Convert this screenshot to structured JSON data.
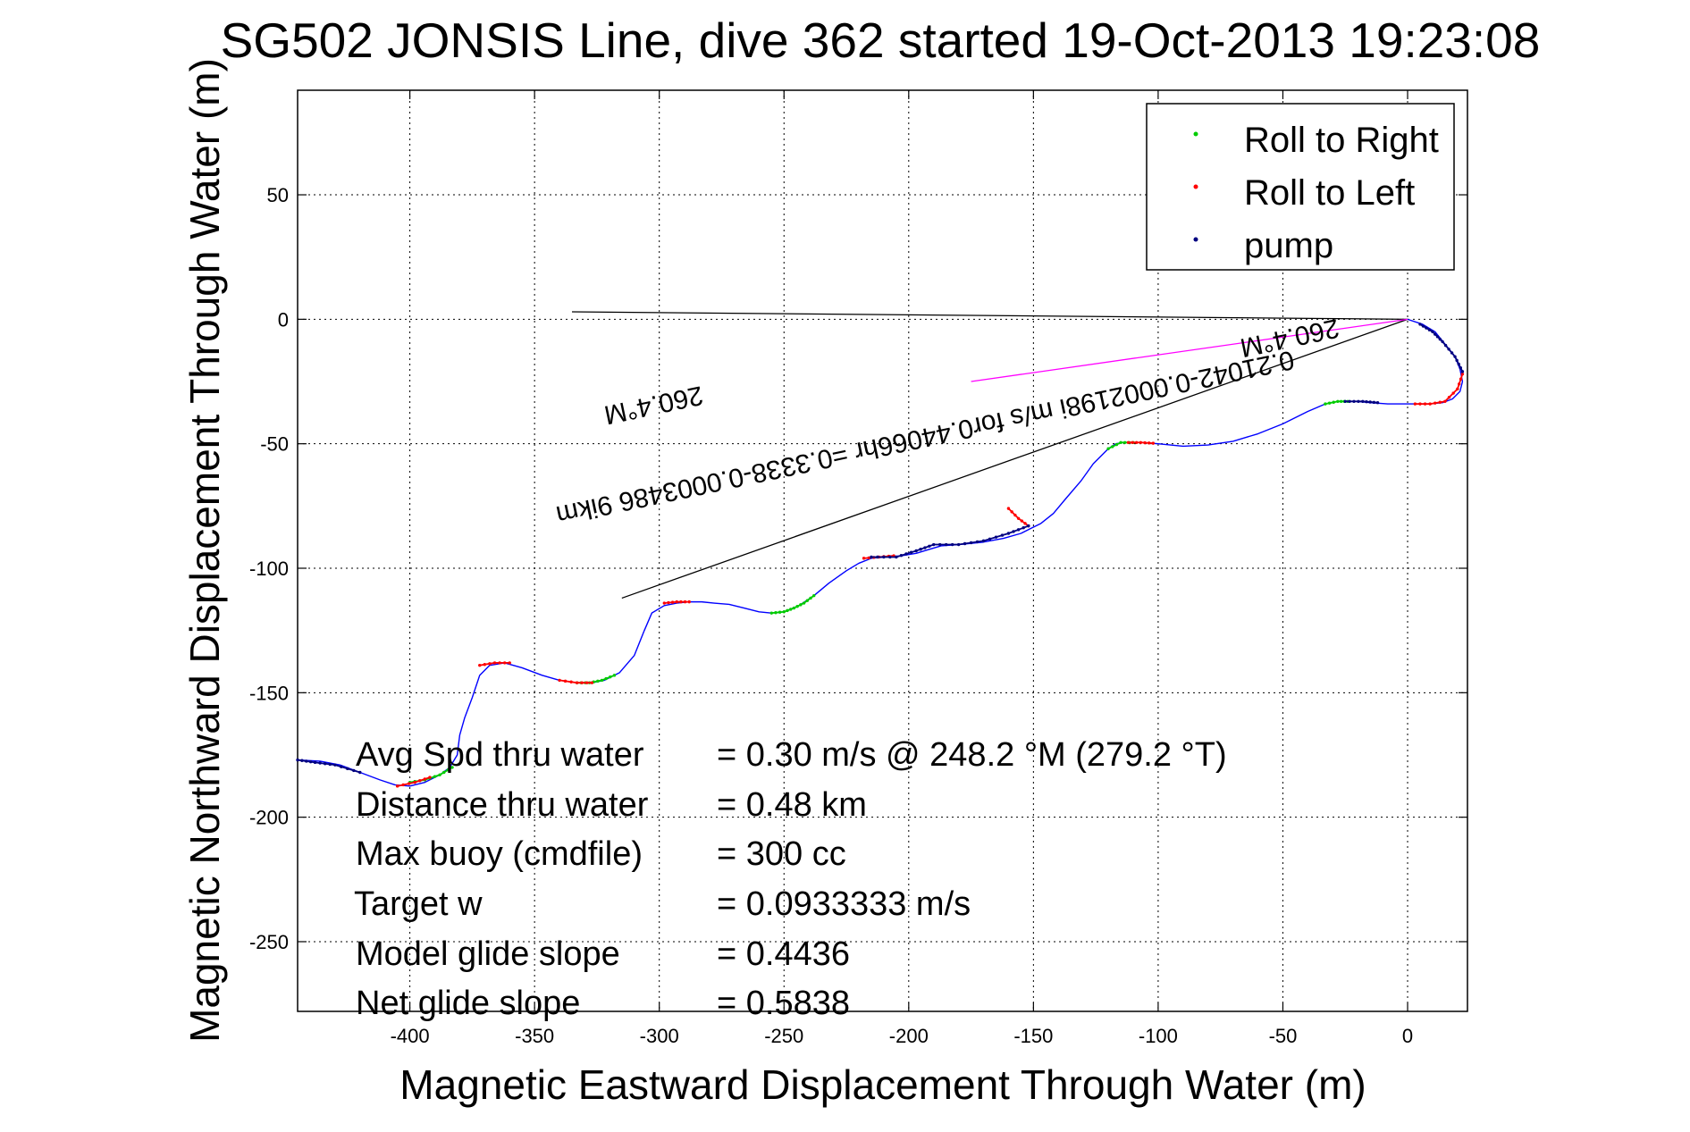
{
  "chart_data": {
    "type": "line",
    "title": "SG502 JONSIS Line, dive 362 started 19-Oct-2013 19:23:08",
    "xlabel": "Magnetic Eastward Displacement Through Water (m)",
    "ylabel": "Magnetic Northward Displacement Through Water (m)",
    "xlim": [
      -445,
      24
    ],
    "ylim": [
      -278,
      92
    ],
    "xticks": [
      -400,
      -350,
      -300,
      -250,
      -200,
      -150,
      -100,
      -50,
      0
    ],
    "yticks": [
      50,
      0,
      -50,
      -100,
      -150,
      -200,
      -250
    ],
    "grid": true,
    "legend_position": "top-right",
    "legend": [
      {
        "label": "Roll to Right",
        "color": "#00cc00"
      },
      {
        "label": "Roll to Left",
        "color": "#ff0000"
      },
      {
        "label": "pump",
        "color": "#000080"
      }
    ],
    "track": {
      "name": "",
      "color": "#0000ff",
      "x": [
        0,
        6,
        11,
        15,
        19,
        21,
        22,
        21,
        18,
        14,
        9,
        4,
        0,
        -8,
        -15,
        -20,
        -24,
        -28,
        -33,
        -40,
        -50,
        -60,
        -70,
        -80,
        -90,
        -100,
        -106,
        -110,
        -114,
        -117,
        -120,
        -126,
        -131,
        -137,
        -142,
        -147,
        -151,
        -155,
        -162,
        -170,
        -180,
        -187,
        -192,
        -197,
        -203,
        -209,
        -215,
        -220,
        -225,
        -232,
        -238,
        -244,
        -250,
        -255,
        -260,
        -266,
        -272,
        -278,
        -283,
        -288,
        -293,
        -298,
        -303,
        -306,
        -310,
        -316,
        -322,
        -327,
        -333,
        -340,
        -347,
        -355,
        -362,
        -368,
        -372,
        -375,
        -378,
        -380,
        -381,
        -384,
        -388,
        -394,
        -400,
        -406,
        -412,
        -420,
        -428,
        -436,
        -445
      ],
      "y": [
        0,
        -2,
        -5,
        -10,
        -15,
        -20,
        -25,
        -29,
        -32,
        -33.5,
        -34,
        -34,
        -34,
        -34,
        -33.5,
        -33,
        -33,
        -33,
        -34,
        -37,
        -42,
        -46,
        -49,
        -50.5,
        -51,
        -50,
        -49.5,
        -49.5,
        -49.5,
        -50,
        -52,
        -58,
        -65,
        -72,
        -78,
        -82,
        -84,
        -86,
        -88,
        -89.5,
        -90.5,
        -91,
        -92.5,
        -94,
        -95,
        -95.5,
        -96,
        -98,
        -101,
        -106,
        -111,
        -115,
        -117.5,
        -118,
        -117.5,
        -116,
        -114.5,
        -114,
        -113.5,
        -113.5,
        -114,
        -115,
        -118,
        -125,
        -135,
        -142,
        -145,
        -146,
        -146,
        -145,
        -143,
        -140,
        -138,
        -139,
        -143,
        -152,
        -160,
        -167,
        -175,
        -180,
        -183,
        -186,
        -187.5,
        -187,
        -185,
        -182,
        -179,
        -177.5,
        -177
      ]
    },
    "pump_segments": [
      {
        "x": [
          -215,
          -205,
          -197,
          -190,
          -180,
          -170,
          -160,
          -152
        ],
        "y": [
          -95.5,
          -95.5,
          -93,
          -90.5,
          -90.5,
          -89,
          -86,
          -83
        ]
      },
      {
        "x": [
          -25,
          -18,
          -12
        ],
        "y": [
          -33,
          -33,
          -33.5
        ]
      },
      {
        "x": [
          5,
          10,
          14,
          19,
          22
        ],
        "y": [
          -2,
          -5,
          -9,
          -15,
          -21
        ]
      },
      {
        "x": [
          -420,
          -430,
          -438,
          -445
        ],
        "y": [
          -182,
          -179,
          -178,
          -177
        ]
      }
    ],
    "left_roll_segments": [
      {
        "x": [
          22,
          20,
          15,
          9,
          3
        ],
        "y": [
          -22,
          -28,
          -33,
          -34,
          -34
        ]
      },
      {
        "x": [
          -152,
          -156,
          -160
        ],
        "y": [
          -83,
          -80,
          -76
        ]
      },
      {
        "x": [
          -112,
          -107,
          -102
        ],
        "y": [
          -49.5,
          -49.5,
          -49.8
        ]
      },
      {
        "x": [
          -218,
          -212,
          -206
        ],
        "y": [
          -96,
          -95.5,
          -95
        ]
      },
      {
        "x": [
          -288,
          -293,
          -298
        ],
        "y": [
          -113.5,
          -113.5,
          -114
        ]
      },
      {
        "x": [
          -340,
          -333,
          -327
        ],
        "y": [
          -145,
          -146,
          -146
        ]
      },
      {
        "x": [
          -405,
          -398,
          -392
        ],
        "y": [
          -187.5,
          -186,
          -184
        ]
      },
      {
        "x": [
          -360,
          -366,
          -372
        ],
        "y": [
          -138,
          -138,
          -139
        ]
      }
    ],
    "right_roll_segments": [
      {
        "x": [
          -33,
          -28,
          -24
        ],
        "y": [
          -34,
          -33,
          -33
        ]
      },
      {
        "x": [
          -120,
          -115,
          -110
        ],
        "y": [
          -52,
          -49.5,
          -49.5
        ]
      },
      {
        "x": [
          -255,
          -250,
          -246,
          -242,
          -238
        ],
        "y": [
          -118,
          -117.5,
          -116,
          -114,
          -111
        ]
      },
      {
        "x": [
          -333,
          -328,
          -323,
          -318
        ],
        "y": [
          -146,
          -146,
          -145,
          -143
        ]
      },
      {
        "x": [
          -400,
          -394,
          -388,
          -383
        ],
        "y": [
          -186,
          -185,
          -183,
          -180
        ]
      }
    ],
    "aux_lines": [
      {
        "name": "",
        "color": "#000000",
        "x": [
          -335,
          0
        ],
        "y": [
          3,
          0
        ]
      },
      {
        "name": "",
        "color": "#000000",
        "x": [
          -315,
          0
        ],
        "y": [
          -112,
          0
        ]
      },
      {
        "name": "",
        "color": "#ff00ff",
        "x": [
          -175,
          0
        ],
        "y": [
          -25,
          0
        ]
      }
    ],
    "annotations": [
      {
        "text": "0.21042-0.0002198i m/s for0.44066hr =0.3338-0.0003486 9ikm",
        "x": -430,
        "y": -72
      },
      {
        "text": "260.4°M",
        "x": -50,
        "y": -5
      },
      {
        "text": "260.4°M",
        "x": -300,
        "y": -33
      }
    ],
    "stats": [
      {
        "label": "Avg Spd thru water",
        "value": "=  0.30 m/s @ 248.2 °M (279.2 °T)"
      },
      {
        "label": "Distance thru water",
        "value": "=  0.48 km"
      },
      {
        "label": "Max buoy (cmdfile)",
        "value": "= 300 cc"
      },
      {
        "label": "Target w",
        "value": "= 0.0933333 m/s"
      },
      {
        "label": "Model glide slope",
        "value": "= 0.4436"
      },
      {
        "label": "Net glide slope",
        "value": "= 0.5838"
      }
    ]
  }
}
